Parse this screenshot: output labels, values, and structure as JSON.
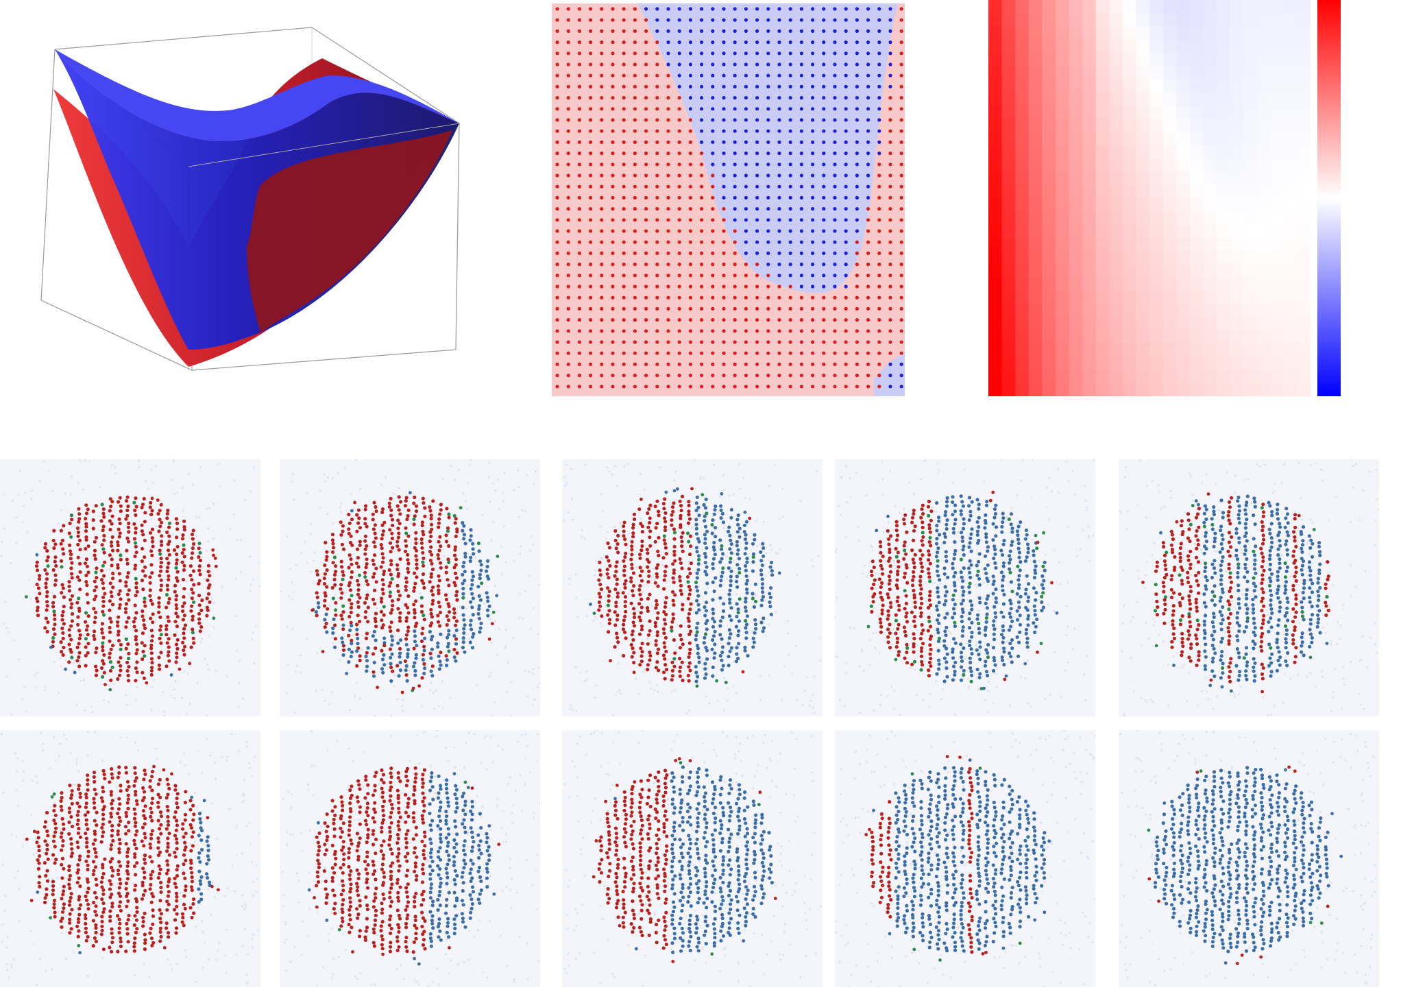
{
  "colors": {
    "red": "#d42a2a",
    "blue": "#2f2fe6",
    "particle_red": "#b8211c",
    "particle_blue": "#3b6ea8",
    "particle_green": "#2c8a4a",
    "map_red_bg": "#f7c9c9",
    "map_blue_bg": "#c9cdf6",
    "map_red_dot": "#d81e1e",
    "map_blue_dot": "#1f1fd8",
    "background_gas": "#dfe3ef"
  },
  "figure": {
    "top_row": [
      {
        "kind": "3d-surface-plot",
        "surfaces": [
          "red",
          "blue"
        ]
      },
      {
        "kind": "phase-map",
        "regions": [
          "red",
          "blue"
        ],
        "grid": "dotted"
      },
      {
        "kind": "heatmap",
        "colorbar": "red-white-blue"
      }
    ],
    "snapshot_rows": [
      {
        "row": 1,
        "count": 5,
        "species": [
          "red",
          "blue",
          "green"
        ],
        "blue_fraction": [
          0.0,
          0.2,
          0.45,
          0.65,
          0.75
        ]
      },
      {
        "row": 2,
        "count": 5,
        "species": [
          "red",
          "blue"
        ],
        "blue_fraction": [
          0.1,
          0.35,
          0.6,
          0.85,
          1.0
        ]
      }
    ]
  }
}
